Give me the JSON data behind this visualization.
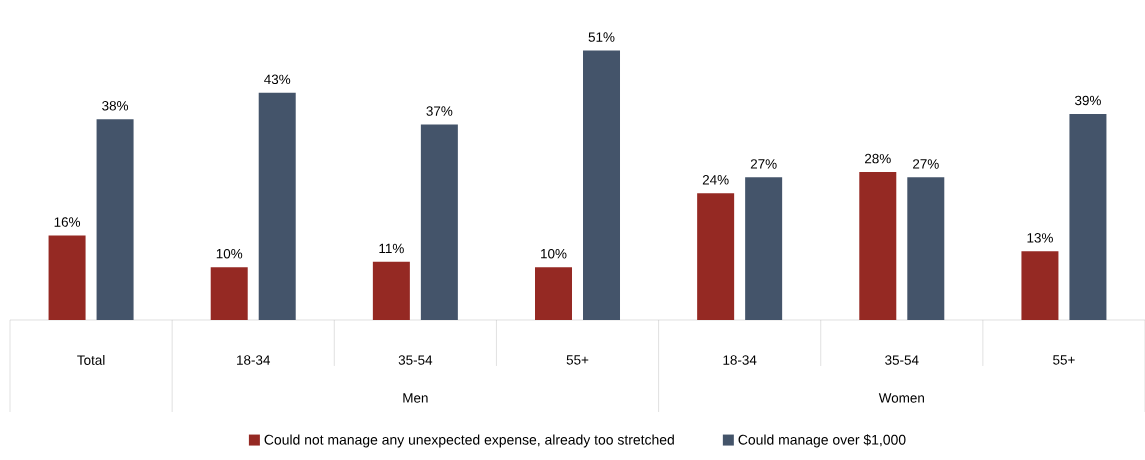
{
  "chart_data": {
    "type": "bar",
    "categories": [
      "Total",
      "18-34",
      "35-54",
      "55+",
      "18-34",
      "35-54",
      "55+"
    ],
    "annotations": [
      "Men",
      "Women"
    ],
    "series": [
      {
        "name": "Could not manage any unexpected expense, already too stretched",
        "color": "#952923",
        "values": [
          16,
          10,
          11,
          10,
          24,
          28,
          13
        ],
        "value_labels": [
          "16%",
          "10%",
          "11%",
          "10%",
          "24%",
          "28%",
          "13%"
        ]
      },
      {
        "name": "Could manage over $1,000",
        "color": "#44546a",
        "values": [
          38,
          43,
          37,
          51,
          27,
          27,
          39
        ],
        "value_labels": [
          "38%",
          "43%",
          "37%",
          "51%",
          "27%",
          "27%",
          "39%"
        ]
      }
    ],
    "legend": "bottom"
  }
}
